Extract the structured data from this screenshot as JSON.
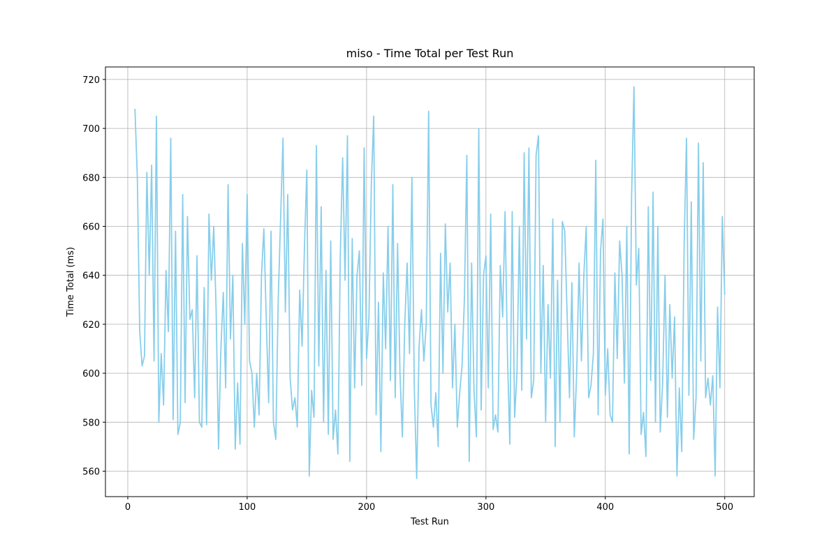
{
  "chart_data": {
    "type": "line",
    "title": "miso - Time Total per Test Run",
    "x_label": "Test Run",
    "y_label": "Time Total (ms)",
    "x": [
      6,
      8,
      10,
      12,
      14,
      16,
      18,
      20,
      22,
      24,
      26,
      28,
      30,
      32,
      34,
      36,
      38,
      40,
      42,
      44,
      46,
      48,
      50,
      52,
      54,
      56,
      58,
      60,
      62,
      64,
      66,
      68,
      70,
      72,
      74,
      76,
      78,
      80,
      82,
      84,
      86,
      88,
      90,
      92,
      94,
      96,
      98,
      100,
      102,
      104,
      106,
      108,
      110,
      112,
      114,
      116,
      118,
      120,
      122,
      124,
      126,
      128,
      130,
      132,
      134,
      136,
      138,
      140,
      142,
      144,
      146,
      148,
      150,
      152,
      154,
      156,
      158,
      160,
      162,
      164,
      166,
      168,
      170,
      172,
      174,
      176,
      178,
      180,
      182,
      184,
      186,
      188,
      190,
      192,
      194,
      196,
      198,
      200,
      202,
      204,
      206,
      208,
      210,
      212,
      214,
      216,
      218,
      220,
      222,
      224,
      226,
      228,
      230,
      232,
      234,
      236,
      238,
      240,
      242,
      244,
      246,
      248,
      250,
      252,
      254,
      256,
      258,
      260,
      262,
      264,
      266,
      268,
      270,
      272,
      274,
      276,
      278,
      280,
      282,
      284,
      286,
      288,
      290,
      292,
      294,
      296,
      298,
      300,
      302,
      304,
      306,
      308,
      310,
      312,
      314,
      316,
      318,
      320,
      322,
      324,
      326,
      328,
      330,
      332,
      334,
      336,
      338,
      340,
      342,
      344,
      346,
      348,
      350,
      352,
      354,
      356,
      358,
      360,
      362,
      364,
      366,
      368,
      370,
      372,
      374,
      376,
      378,
      380,
      382,
      384,
      386,
      388,
      390,
      392,
      394,
      396,
      398,
      400,
      402,
      404,
      406,
      408,
      410,
      412,
      414,
      416,
      418,
      420,
      422,
      424,
      426,
      428,
      430,
      432,
      434,
      436,
      438,
      440,
      442,
      444,
      446,
      448,
      450,
      452,
      454,
      456,
      458,
      460,
      462,
      464,
      466,
      468,
      470,
      472,
      474,
      476,
      478,
      480,
      482,
      484,
      486,
      488,
      490,
      492,
      494,
      496,
      498,
      500
    ],
    "series": [
      {
        "name": "Time Total",
        "color": "#87ceeb",
        "values": [
          708,
          680,
          617,
          603,
          607,
          682,
          640,
          685,
          605,
          705,
          580,
          608,
          587,
          642,
          617,
          696,
          581,
          658,
          575,
          580,
          673,
          588,
          664,
          622,
          626,
          590,
          648,
          580,
          578,
          635,
          579,
          665,
          638,
          660,
          626,
          569,
          610,
          633,
          594,
          677,
          614,
          640,
          569,
          596,
          571,
          653,
          620,
          673,
          605,
          600,
          578,
          600,
          583,
          640,
          659,
          622,
          588,
          658,
          580,
          573,
          630,
          663,
          696,
          625,
          673,
          598,
          585,
          590,
          578,
          634,
          611,
          652,
          683,
          558,
          593,
          582,
          693,
          603,
          668,
          580,
          642,
          575,
          654,
          573,
          585,
          567,
          648,
          688,
          638,
          697,
          564,
          655,
          594,
          640,
          650,
          595,
          692,
          606,
          623,
          677,
          705,
          583,
          629,
          568,
          641,
          610,
          660,
          597,
          677,
          590,
          653,
          600,
          574,
          620,
          645,
          608,
          680,
          594,
          557,
          611,
          626,
          605,
          620,
          707,
          587,
          578,
          592,
          570,
          649,
          600,
          661,
          625,
          645,
          594,
          620,
          578,
          592,
          603,
          631,
          689,
          564,
          645,
          593,
          574,
          700,
          585,
          640,
          648,
          594,
          665,
          577,
          583,
          576,
          644,
          623,
          666,
          608,
          571,
          666,
          582,
          600,
          660,
          593,
          690,
          614,
          692,
          590,
          597,
          689,
          697,
          600,
          644,
          580,
          628,
          598,
          663,
          570,
          638,
          580,
          662,
          658,
          624,
          590,
          637,
          574,
          600,
          645,
          605,
          640,
          660,
          590,
          595,
          608,
          687,
          583,
          650,
          663,
          591,
          610,
          583,
          580,
          641,
          606,
          654,
          640,
          596,
          660,
          567,
          672,
          717,
          636,
          651,
          575,
          584,
          566,
          668,
          597,
          674,
          580,
          660,
          576,
          596,
          640,
          582,
          628,
          598,
          623,
          558,
          594,
          568,
          652,
          696,
          591,
          670,
          573,
          590,
          694,
          605,
          686,
          590,
          598,
          587,
          599,
          558,
          627,
          594,
          664,
          632
        ]
      }
    ],
    "xlim": [
      -18.7,
      524.7
    ],
    "ylim": [
      549.6,
      725.1
    ],
    "xticks": [
      0,
      100,
      200,
      300,
      400,
      500
    ],
    "yticks": [
      560,
      580,
      600,
      620,
      640,
      660,
      680,
      700,
      720
    ],
    "grid": true
  }
}
